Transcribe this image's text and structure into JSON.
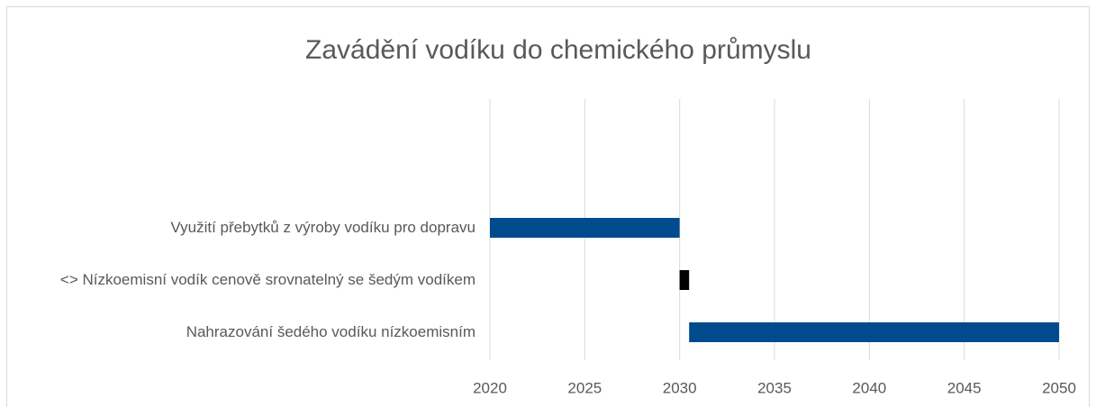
{
  "chart_data": {
    "type": "range-bar",
    "title": "Zavádění vodíku do chemického průmyslu",
    "categories": [
      "Využití přebytků z výroby vodíku pro dopravu",
      "<> Nízkoemisní vodík cenově srovnatelný se šedým vodíkem",
      "Nahrazování šedého vodíku nízkoemisním"
    ],
    "starts": [
      2020,
      2030,
      2030.5
    ],
    "ends": [
      2030,
      2030.5,
      2050
    ],
    "colors": [
      "#004b8d",
      "#000000",
      "#004b8d"
    ],
    "xlim": [
      2020,
      2050
    ],
    "xticks": [
      2020,
      2025,
      2030,
      2035,
      2040,
      2045,
      2050
    ],
    "grid": true
  }
}
